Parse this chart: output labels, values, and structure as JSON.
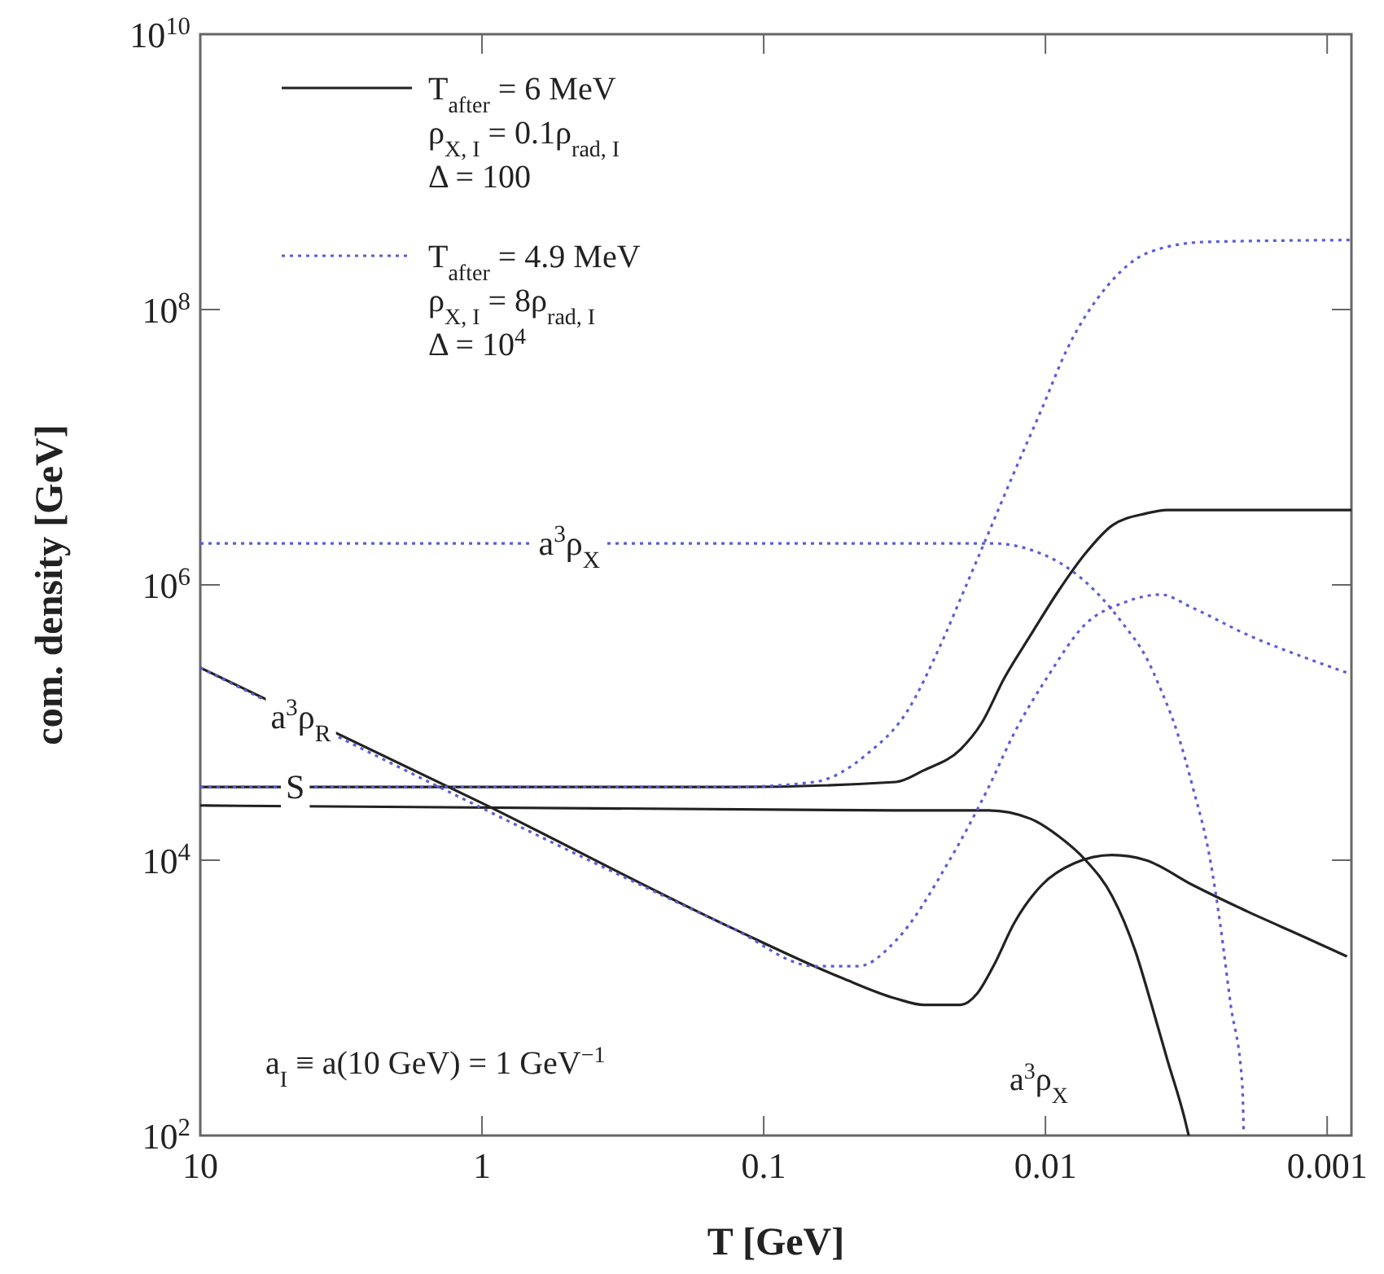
{
  "chart_data": {
    "type": "line",
    "xlabel": "T [GeV]",
    "ylabel": "com. density [GeV]",
    "log": "xy",
    "grid": false,
    "legend": "top left",
    "marker": "none",
    "xlim": [
      10,
      0.00082
    ],
    "xticks": [
      10,
      1,
      0.1,
      0.01,
      0.001
    ],
    "ylim": [
      100,
      10000000000
    ],
    "yticks": [
      {
        "value": 100,
        "label": "10$^{2}$"
      },
      {
        "value": 10000,
        "label": "10$^{4}$"
      },
      {
        "value": 1000000,
        "label": "10$^{6}$"
      },
      {
        "value": 100000000,
        "label": "10$^{8}$"
      },
      {
        "value": 10000000000,
        "label": "10$^{10}$"
      }
    ],
    "series": [
      {
        "name": "T$_{after}$ = 6 MeV",
        "color": "#222222",
        "line_style": "solid",
        "x": [
          10,
          0.13,
          0.034,
          0.027,
          0.02,
          0.0168,
          0.014,
          0.0113,
          0.009,
          0.0072,
          0.0058,
          0.0044,
          0.0037,
          0.00082
        ],
        "values": [
          34000,
          34000,
          37000,
          45000,
          64000,
          100000,
          210000,
          430000,
          900000,
          1700000,
          2700000,
          3300000,
          3500000,
          3500000
        ]
      },
      {
        "color": "#222222",
        "line_style": "solid",
        "x": [
          10,
          0.034,
          0.0159,
          0.0113,
          0.009,
          0.0072,
          0.0058,
          0.0048,
          0.0042,
          0.0037,
          0.0032,
          0.0031
        ],
        "values": [
          25000,
          23000,
          23000,
          20000,
          15000,
          10000,
          5500,
          2200,
          890,
          360,
          131,
          100
        ]
      },
      {
        "color": "#222222",
        "line_style": "solid",
        "x": [
          10,
          1,
          0.129,
          0.053,
          0.034,
          0.027,
          0.02,
          0.0175,
          0.0153,
          0.0129,
          0.0103,
          0.0079,
          0.0058,
          0.0044,
          0.003,
          0.0019,
          0.00122,
          0.00085
        ],
        "values": [
          250000,
          26000,
          3200,
          1400,
          990,
          890,
          890,
          1070,
          1700,
          3500,
          6600,
          9500,
          10900,
          10000,
          6600,
          4200,
          2800,
          2000
        ]
      },
      {
        "name": "T$_{after}$ = 4.9 MeV",
        "color": "#5c5cd6",
        "line_style": "dotted",
        "x": [
          10,
          0.13,
          0.066,
          0.043,
          0.031,
          0.0238,
          0.0192,
          0.0159,
          0.0129,
          0.0103,
          0.0084,
          0.006,
          0.0043,
          0.0027,
          0.00082
        ],
        "values": [
          34000,
          34000,
          37000,
          59000,
          120000,
          350000,
          970000,
          2400000,
          6600000,
          19000000,
          51000000,
          150000000,
          260000000,
          310000000,
          320000000
        ]
      },
      {
        "color": "#5c5cd6",
        "line_style": "dotted",
        "x": [
          10,
          0.0153,
          0.0113,
          0.0082,
          0.0063,
          0.0053,
          0.0044,
          0.0039,
          0.0034,
          0.003,
          0.0026,
          0.0024,
          0.0022,
          0.002,
          0.00198
        ],
        "values": [
          2000000,
          2000000,
          1800000,
          1300000,
          800000,
          520000,
          300000,
          175000,
          84000,
          34000,
          10000,
          3500,
          890,
          230,
          110
        ]
      },
      {
        "color": "#5c5cd6",
        "line_style": "dotted",
        "x": [
          10,
          0.129,
          0.066,
          0.046,
          0.034,
          0.0219,
          0.0159,
          0.0129,
          0.0099,
          0.0072,
          0.0053,
          0.0039,
          0.003,
          0.0019,
          0.00122,
          0.00085
        ],
        "values": [
          250000,
          3200,
          1700,
          1700,
          2600,
          10000,
          34000,
          84000,
          210000,
          520000,
          740000,
          850000,
          680000,
          430000,
          300000,
          230000
        ]
      }
    ],
    "annotations": [
      "ρ$_{X, I}$ = 0.1ρ$_{rad, I}$",
      "Δ = 100",
      "ρ$_{X, I}$ = 8ρ$_{rad, I}$",
      "Δ = 10$^{4}$",
      {
        "text": "a$^{3}$ρ$_{X}$",
        "x": 0.49,
        "y": 2000000
      },
      {
        "text": "a$^{3}$ρ$_{R}$",
        "x": 4.4,
        "y": 110000
      },
      {
        "text": "S",
        "x": 4.6,
        "y": 34000
      },
      "a$^{3}$ρ$_{X}$",
      "a$_{I}$ ≡ a(10 GeV) = 1 GeV$^{−1}$"
    ]
  }
}
